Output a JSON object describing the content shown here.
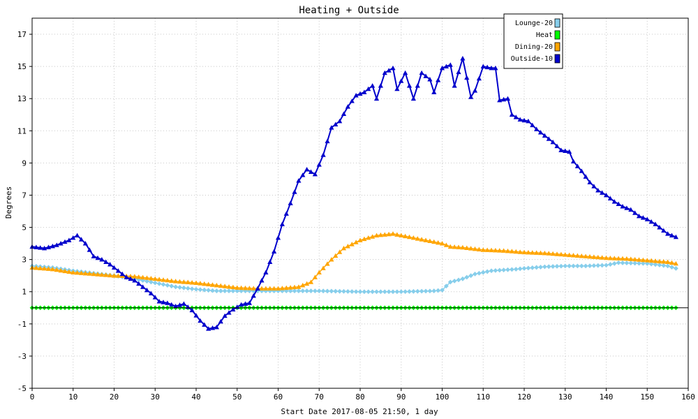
{
  "chart_data": {
    "type": "line",
    "title": "Heating + Outside",
    "xlabel": "Start Date 2017-08-05 21:50, 1 day",
    "ylabel": "Degrees",
    "xlim": [
      0,
      160
    ],
    "ylim": [
      -5,
      18
    ],
    "x_ticks": [
      0,
      10,
      20,
      30,
      40,
      50,
      60,
      70,
      80,
      90,
      100,
      110,
      120,
      130,
      140,
      150,
      160
    ],
    "y_ticks": [
      -5,
      -3,
      -1,
      1,
      3,
      5,
      7,
      9,
      11,
      13,
      15,
      17
    ],
    "grid": true,
    "legend_position": "top-right",
    "series": [
      {
        "name": "Lounge-20",
        "color": "#87ceeb",
        "marker": "diamond",
        "points": [
          [
            0,
            2.6
          ],
          [
            5,
            2.5
          ],
          [
            10,
            2.3
          ],
          [
            15,
            2.15
          ],
          [
            20,
            2.0
          ],
          [
            25,
            1.8
          ],
          [
            30,
            1.55
          ],
          [
            35,
            1.3
          ],
          [
            40,
            1.15
          ],
          [
            45,
            1.05
          ],
          [
            50,
            1.05
          ],
          [
            55,
            1.05
          ],
          [
            60,
            1.05
          ],
          [
            70,
            1.05
          ],
          [
            80,
            1.0
          ],
          [
            90,
            1.0
          ],
          [
            98,
            1.05
          ],
          [
            100,
            1.1
          ],
          [
            102,
            1.6
          ],
          [
            105,
            1.8
          ],
          [
            108,
            2.1
          ],
          [
            112,
            2.3
          ],
          [
            118,
            2.4
          ],
          [
            120,
            2.45
          ],
          [
            125,
            2.55
          ],
          [
            130,
            2.6
          ],
          [
            135,
            2.6
          ],
          [
            140,
            2.65
          ],
          [
            143,
            2.8
          ],
          [
            150,
            2.75
          ],
          [
            155,
            2.6
          ],
          [
            157,
            2.45
          ]
        ]
      },
      {
        "name": "Heat",
        "color": "#00ff00",
        "marker": "diamond",
        "points": [
          [
            0,
            0
          ],
          [
            157,
            0
          ]
        ]
      },
      {
        "name": "Dining-20",
        "color": "#ffa500",
        "marker": "triangle",
        "points": [
          [
            0,
            2.5
          ],
          [
            5,
            2.4
          ],
          [
            10,
            2.2
          ],
          [
            15,
            2.1
          ],
          [
            20,
            2.0
          ],
          [
            25,
            1.95
          ],
          [
            30,
            1.8
          ],
          [
            35,
            1.65
          ],
          [
            40,
            1.55
          ],
          [
            45,
            1.4
          ],
          [
            50,
            1.25
          ],
          [
            55,
            1.2
          ],
          [
            60,
            1.2
          ],
          [
            65,
            1.3
          ],
          [
            68,
            1.6
          ],
          [
            70,
            2.2
          ],
          [
            73,
            3.0
          ],
          [
            76,
            3.7
          ],
          [
            80,
            4.2
          ],
          [
            84,
            4.5
          ],
          [
            88,
            4.6
          ],
          [
            92,
            4.4
          ],
          [
            96,
            4.2
          ],
          [
            100,
            4.0
          ],
          [
            102,
            3.8
          ],
          [
            105,
            3.75
          ],
          [
            110,
            3.6
          ],
          [
            115,
            3.55
          ],
          [
            120,
            3.45
          ],
          [
            125,
            3.4
          ],
          [
            130,
            3.3
          ],
          [
            135,
            3.2
          ],
          [
            140,
            3.1
          ],
          [
            145,
            3.05
          ],
          [
            150,
            2.95
          ],
          [
            155,
            2.85
          ],
          [
            157,
            2.75
          ]
        ]
      },
      {
        "name": "Outside-10",
        "color": "#0000cc",
        "marker": "triangle",
        "points": [
          [
            0,
            3.8
          ],
          [
            3,
            3.7
          ],
          [
            6,
            3.9
          ],
          [
            9,
            4.2
          ],
          [
            11,
            4.5
          ],
          [
            13,
            4.0
          ],
          [
            15,
            3.2
          ],
          [
            17,
            3.0
          ],
          [
            19,
            2.7
          ],
          [
            21,
            2.3
          ],
          [
            23,
            1.9
          ],
          [
            25,
            1.7
          ],
          [
            27,
            1.3
          ],
          [
            29,
            0.9
          ],
          [
            31,
            0.4
          ],
          [
            33,
            0.3
          ],
          [
            35,
            0.1
          ],
          [
            37,
            0.25
          ],
          [
            39,
            -0.15
          ],
          [
            41,
            -0.8
          ],
          [
            43,
            -1.3
          ],
          [
            45,
            -1.2
          ],
          [
            47,
            -0.5
          ],
          [
            49,
            -0.1
          ],
          [
            51,
            0.2
          ],
          [
            53,
            0.3
          ],
          [
            55,
            1.2
          ],
          [
            57,
            2.2
          ],
          [
            59,
            3.5
          ],
          [
            61,
            5.2
          ],
          [
            63,
            6.5
          ],
          [
            65,
            7.9
          ],
          [
            67,
            8.6
          ],
          [
            69,
            8.3
          ],
          [
            71,
            9.5
          ],
          [
            73,
            11.2
          ],
          [
            75,
            11.6
          ],
          [
            77,
            12.5
          ],
          [
            79,
            13.2
          ],
          [
            81,
            13.4
          ],
          [
            83,
            13.8
          ],
          [
            84,
            13.0
          ],
          [
            86,
            14.6
          ],
          [
            88,
            14.9
          ],
          [
            89,
            13.6
          ],
          [
            91,
            14.6
          ],
          [
            93,
            13.0
          ],
          [
            95,
            14.6
          ],
          [
            97,
            14.2
          ],
          [
            98,
            13.4
          ],
          [
            100,
            14.9
          ],
          [
            101,
            15.0
          ],
          [
            102,
            15.1
          ],
          [
            103,
            13.8
          ],
          [
            105,
            15.5
          ],
          [
            107,
            13.1
          ],
          [
            108,
            13.5
          ],
          [
            110,
            15.0
          ],
          [
            112,
            14.9
          ],
          [
            113,
            14.9
          ],
          [
            114,
            12.9
          ],
          [
            116,
            13.0
          ],
          [
            117,
            12.0
          ],
          [
            119,
            11.7
          ],
          [
            121,
            11.6
          ],
          [
            123,
            11.1
          ],
          [
            125,
            10.7
          ],
          [
            127,
            10.3
          ],
          [
            129,
            9.8
          ],
          [
            131,
            9.7
          ],
          [
            132,
            9.1
          ],
          [
            134,
            8.5
          ],
          [
            136,
            7.8
          ],
          [
            138,
            7.3
          ],
          [
            140,
            7.0
          ],
          [
            142,
            6.6
          ],
          [
            144,
            6.3
          ],
          [
            146,
            6.1
          ],
          [
            148,
            5.7
          ],
          [
            150,
            5.5
          ],
          [
            152,
            5.2
          ],
          [
            154,
            4.8
          ],
          [
            155,
            4.6
          ],
          [
            157,
            4.4
          ]
        ]
      }
    ]
  }
}
